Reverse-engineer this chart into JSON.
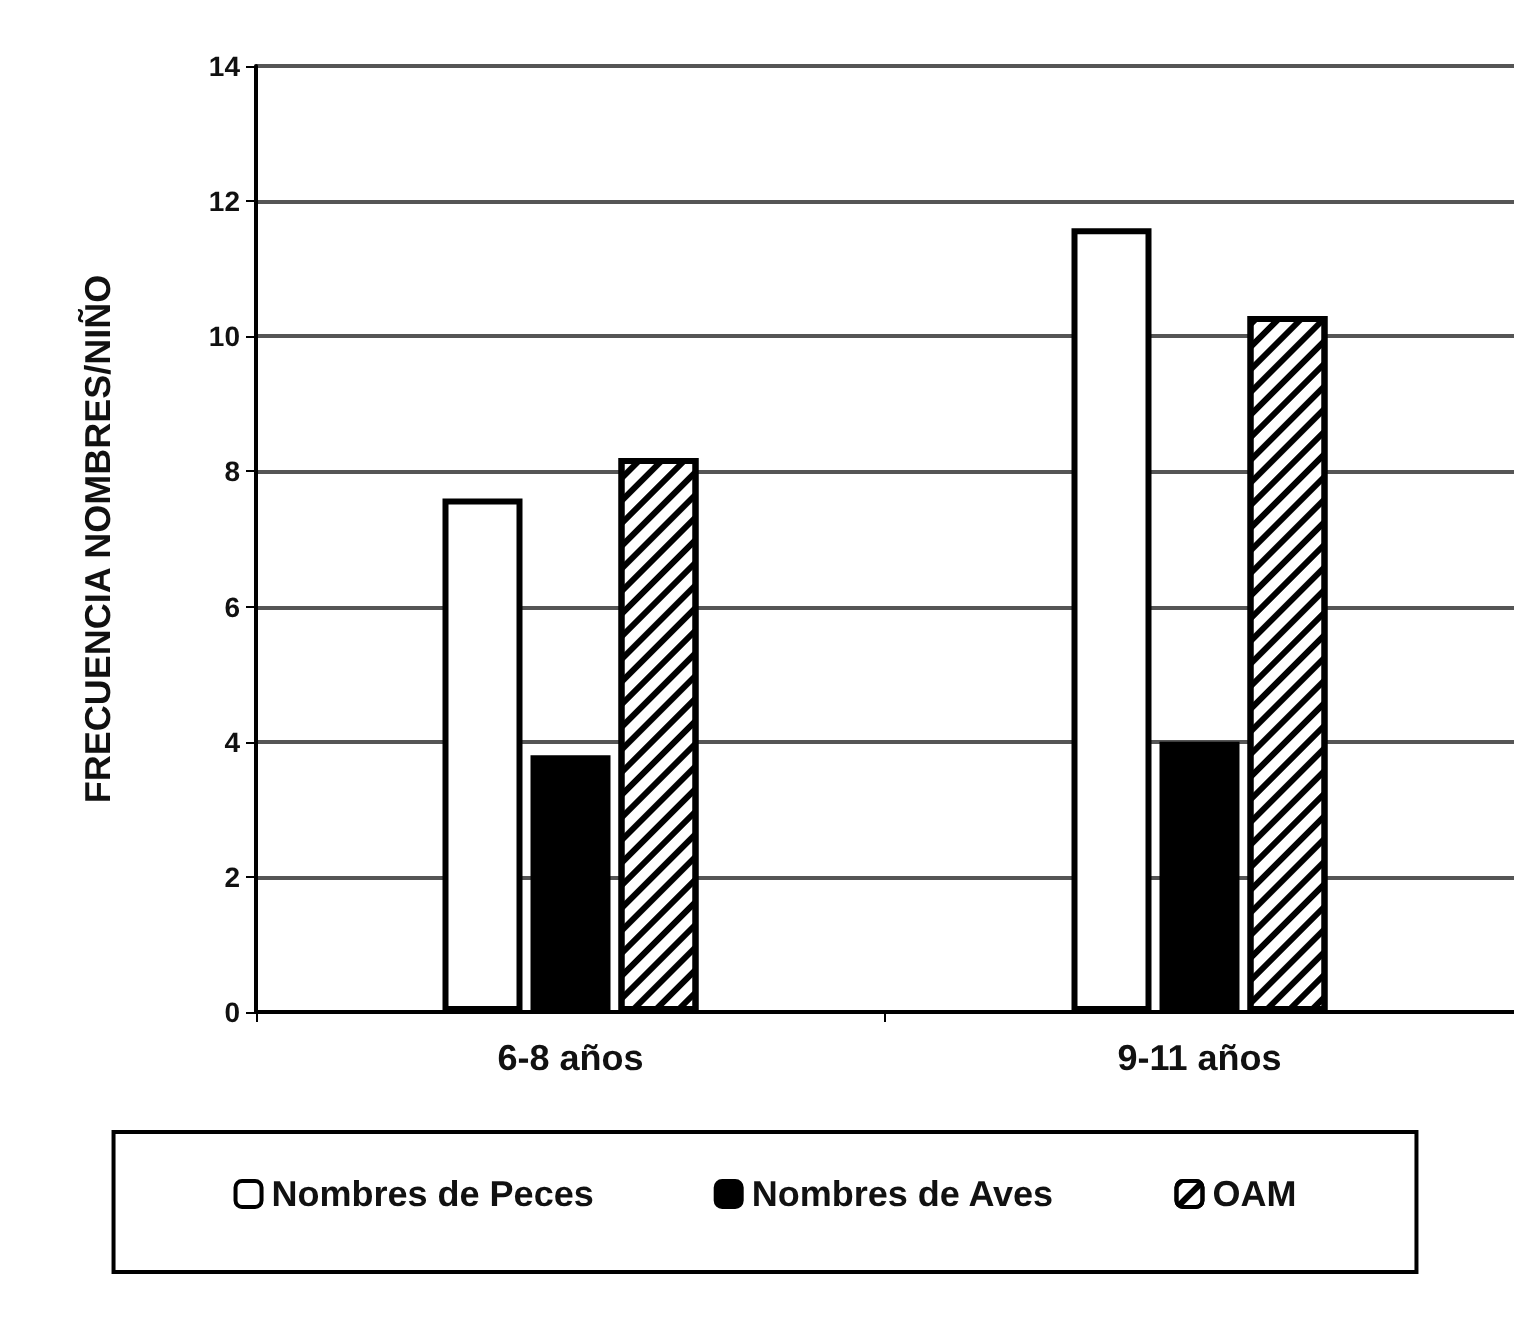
{
  "chart_data": {
    "type": "bar",
    "ylabel": "FRECUENCIA NOMBRES/NIÑO",
    "categories": [
      "6-8 años",
      "9-11 años"
    ],
    "series": [
      {
        "name": "Nombres de Peces",
        "color": "#ffffff",
        "values": [
          7.6,
          11.6
        ]
      },
      {
        "name": "Nombres de Aves",
        "color": "#000000",
        "values": [
          3.8,
          4.0
        ]
      },
      {
        "name": "OAM",
        "color": "#ffffff",
        "values": [
          8.2,
          10.3
        ]
      }
    ],
    "ylim": [
      0,
      14
    ],
    "yticks": [
      0,
      2,
      4,
      6,
      8,
      10,
      12,
      14
    ],
    "grid": "y",
    "legend": "bottom"
  }
}
